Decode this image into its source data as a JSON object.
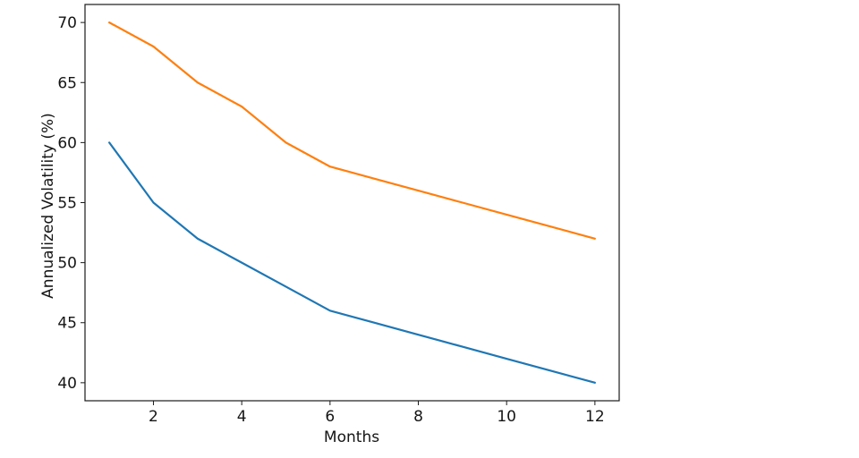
{
  "chart_data": {
    "type": "line",
    "xlabel": "Months",
    "ylabel": "Annualized Volatility (%)",
    "x": [
      1,
      2,
      3,
      4,
      5,
      6,
      7,
      8,
      9,
      10,
      11,
      12
    ],
    "series": [
      {
        "name": "blue",
        "color": "#1f77b4",
        "values": [
          60,
          55,
          52,
          50,
          48,
          46,
          45,
          44,
          43,
          42,
          41,
          40
        ]
      },
      {
        "name": "orange",
        "color": "#ff7f0e",
        "values": [
          70,
          68,
          65,
          63,
          60,
          58,
          57,
          56,
          55,
          54,
          53,
          52
        ]
      }
    ],
    "xticks": [
      2,
      4,
      6,
      8,
      10,
      12
    ],
    "yticks": [
      40,
      45,
      50,
      55,
      60,
      65,
      70
    ],
    "xlim": [
      0.45,
      12.55
    ],
    "ylim": [
      38.5,
      71.5
    ],
    "grid": false,
    "legend": "none"
  },
  "colors": {
    "background": "#ffffff",
    "spine": "#1a1a1a",
    "text": "#151515"
  }
}
